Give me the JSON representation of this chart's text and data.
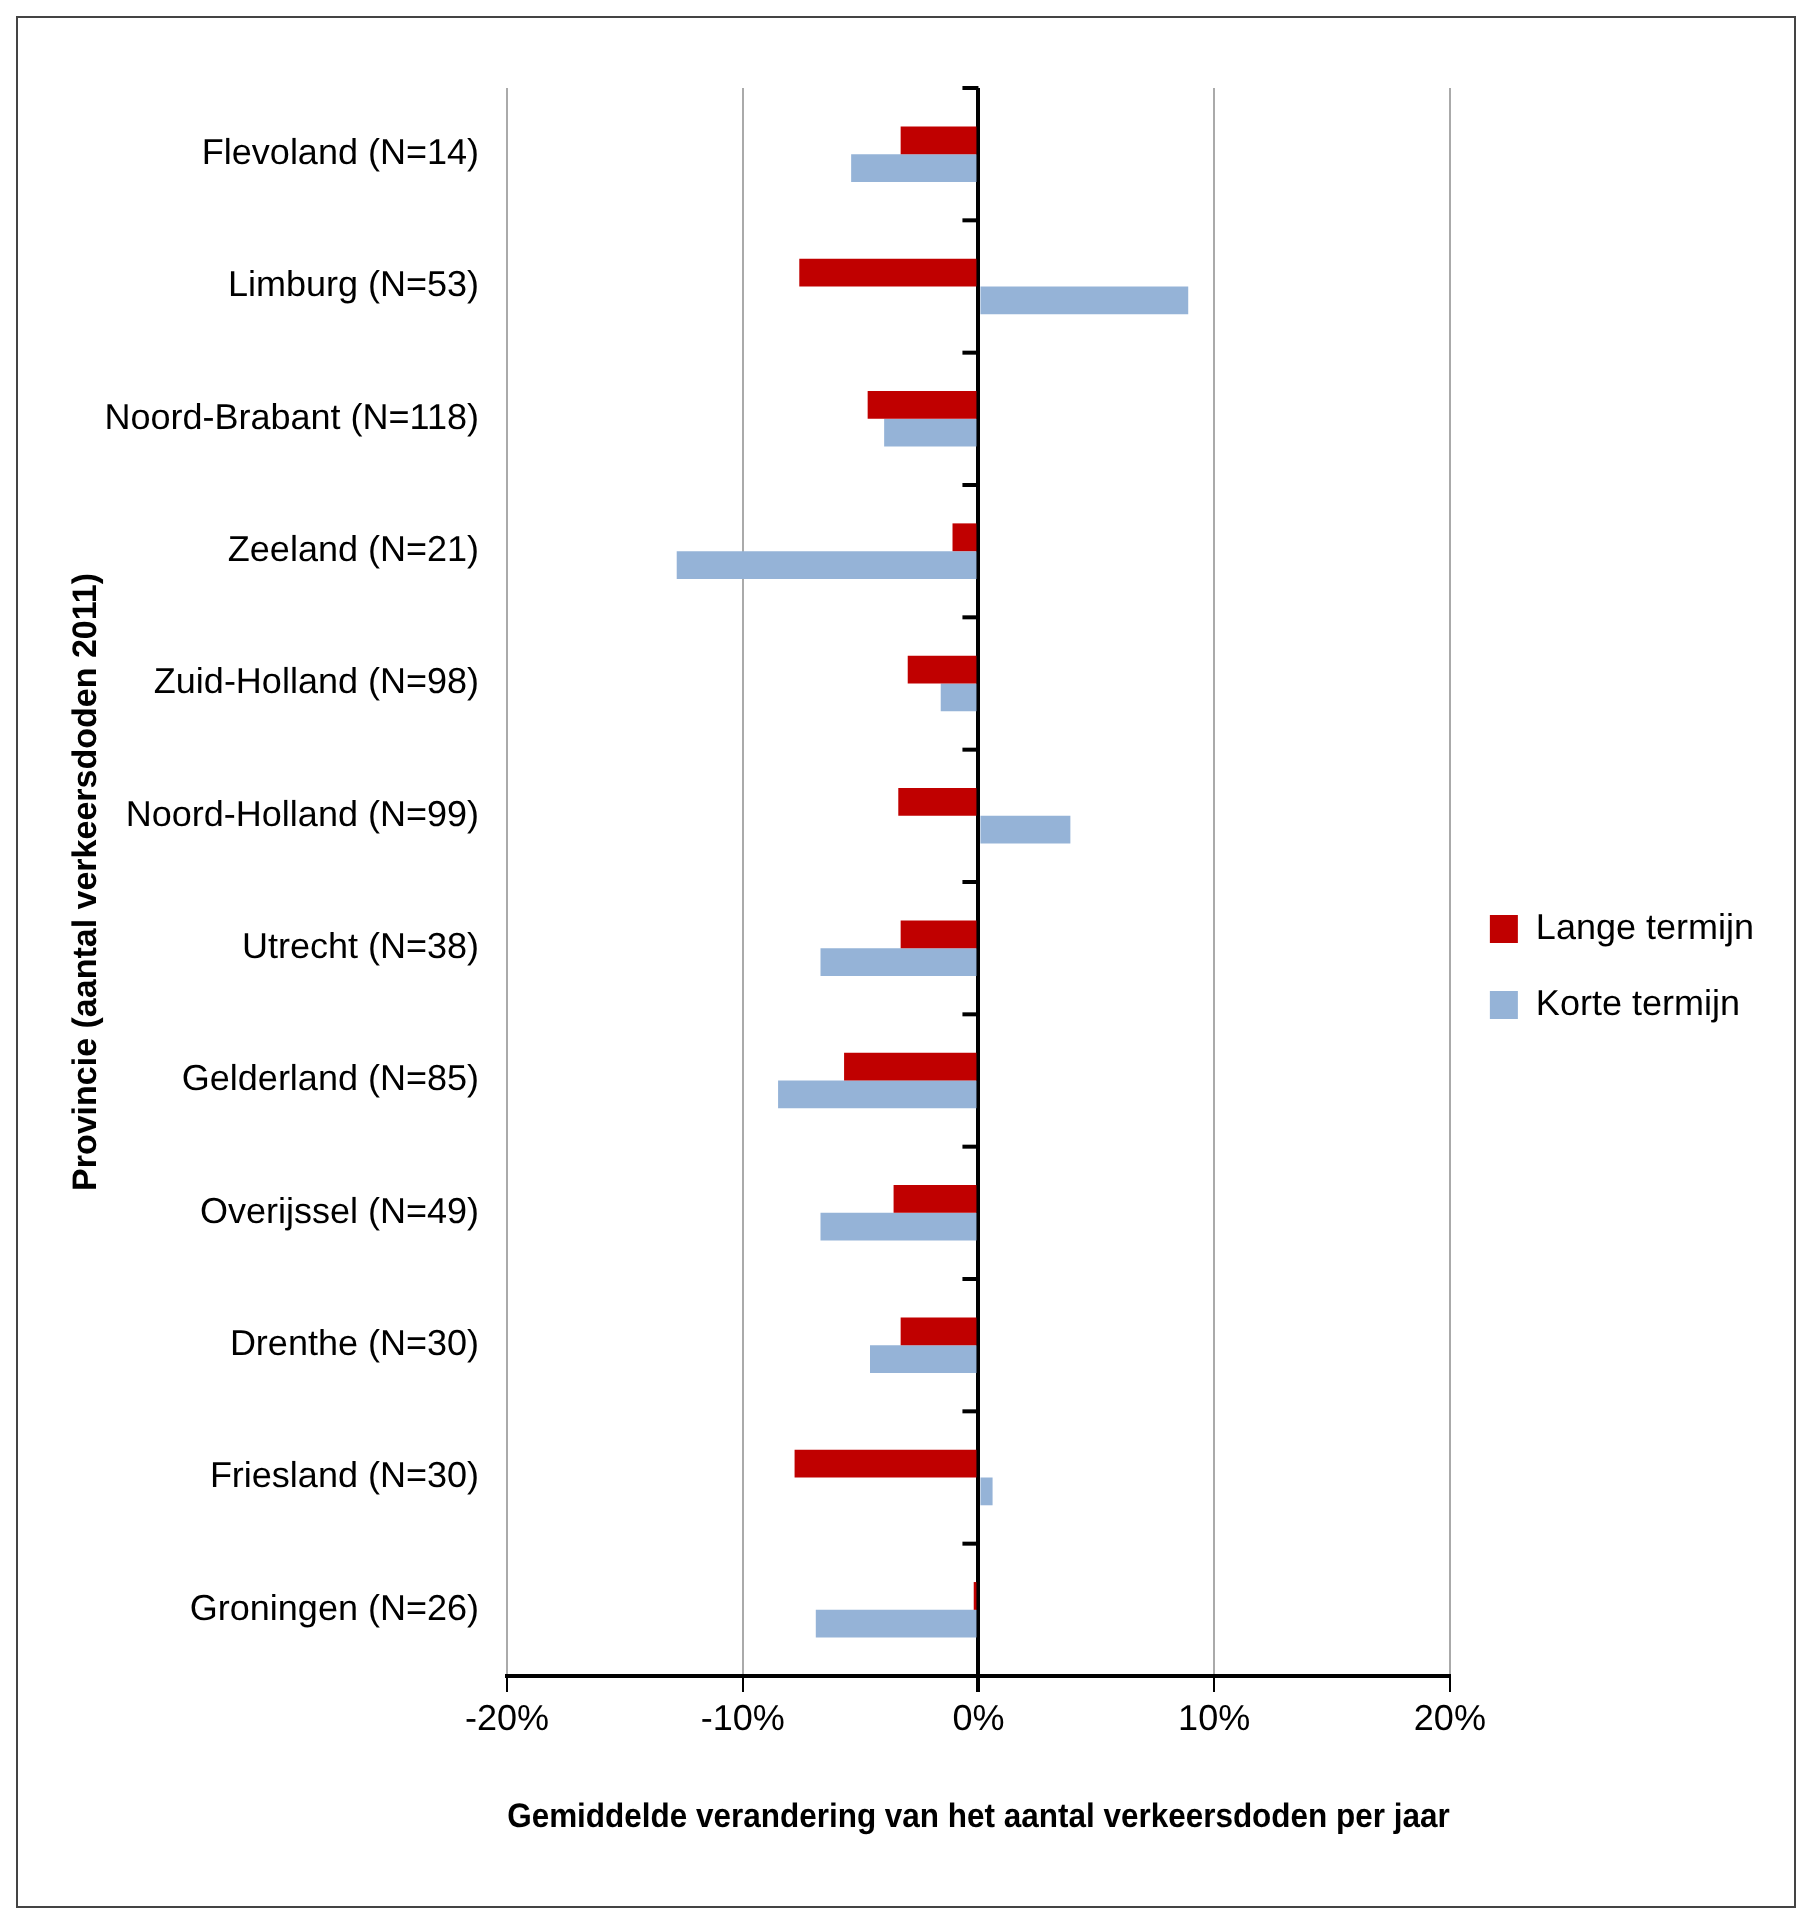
{
  "chart_data": {
    "type": "bar",
    "orientation": "horizontal",
    "xlabel": "Gemiddelde verandering van het aantal verkeersdoden per jaar",
    "ylabel": "Provincie (aantal verkeersdoden 2011)",
    "categories": [
      "Flevoland (N=14)",
      "Limburg (N=53)",
      "Noord-Brabant (N=118)",
      "Zeeland (N=21)",
      "Zuid-Holland (N=98)",
      "Noord-Holland (N=99)",
      "Utrecht (N=38)",
      "Gelderland (N=85)",
      "Overijssel (N=49)",
      "Drenthe (N=30)",
      "Friesland (N=30)",
      "Groningen (N=26)"
    ],
    "series": [
      {
        "name": "Lange termijn",
        "color": "#c00000",
        "values": [
          -3.3,
          -7.6,
          -4.7,
          -1.1,
          -3.0,
          -3.4,
          -3.3,
          -5.7,
          -3.6,
          -3.3,
          -7.8,
          -0.2
        ]
      },
      {
        "name": "Korte termijn",
        "color": "#95b3d7",
        "values": [
          -5.4,
          8.9,
          -4.0,
          -12.8,
          -1.6,
          3.9,
          -6.7,
          -8.5,
          -6.7,
          -4.6,
          0.6,
          -6.9
        ]
      }
    ],
    "xlim": [
      -20,
      20
    ],
    "xticks": [
      {
        "value": -20,
        "label": "-20%"
      },
      {
        "value": -10,
        "label": "-10%"
      },
      {
        "value": 0,
        "label": "0%"
      },
      {
        "value": 10,
        "label": "10%"
      },
      {
        "value": 20,
        "label": "20%"
      }
    ],
    "grid": "x",
    "legend": "right"
  }
}
